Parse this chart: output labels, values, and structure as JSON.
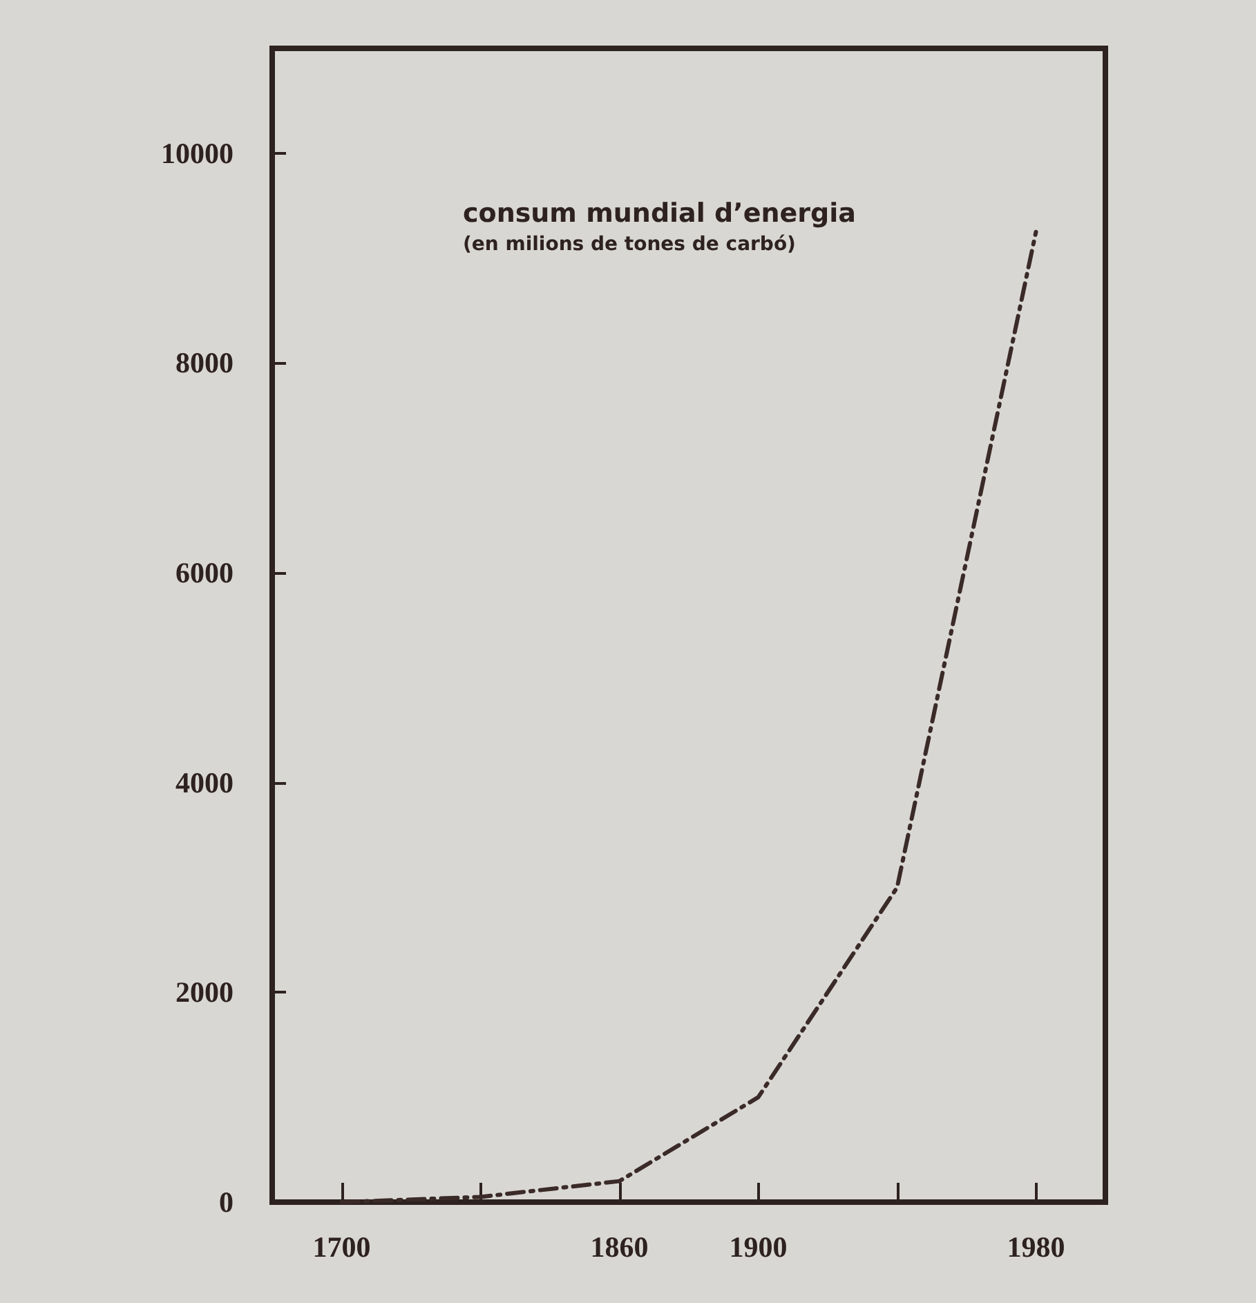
{
  "chart_data": {
    "type": "line",
    "title": "consum mundial d’energia",
    "subtitle": "(en milions de tones de carbó)",
    "categories": [
      "1700",
      null,
      "1860",
      "1900",
      null,
      "1980"
    ],
    "series": [
      {
        "color": "#3a2a28",
        "values": [
          0,
          50,
          200,
          1000,
          3000,
          9250
        ]
      }
    ],
    "ylim": [
      0,
      11000
    ],
    "yticks": [
      0,
      2000,
      4000,
      6000,
      8000,
      10000
    ],
    "grid": false,
    "marker": "none",
    "line_style": "dashed"
  }
}
